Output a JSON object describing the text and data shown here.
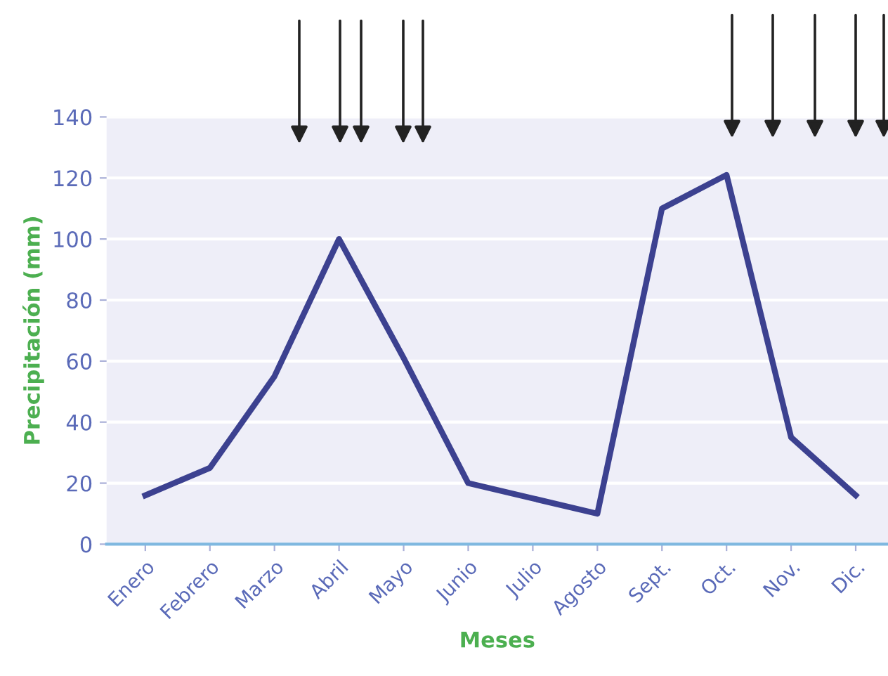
{
  "chart_data": {
    "type": "line",
    "xlabel": "Meses",
    "ylabel": "Precipitación (mm)",
    "categories": [
      "Enero",
      "Febrero",
      "Marzo",
      "Abril",
      "Mayo",
      "Junio",
      "Julio",
      "Agosto",
      "Sept.",
      "Oct.",
      "Nov.",
      "Dic."
    ],
    "series": [
      {
        "color": "#3c4190",
        "values": [
          16,
          25,
          55,
          100,
          61,
          20,
          15,
          10,
          110,
          121,
          35,
          16
        ]
      }
    ],
    "ylim": [
      0,
      140
    ],
    "yticks": [
      0,
      20,
      40,
      60,
      80,
      100,
      120,
      140
    ],
    "grid": "y",
    "marker": "none",
    "line_style": "solid"
  }
}
